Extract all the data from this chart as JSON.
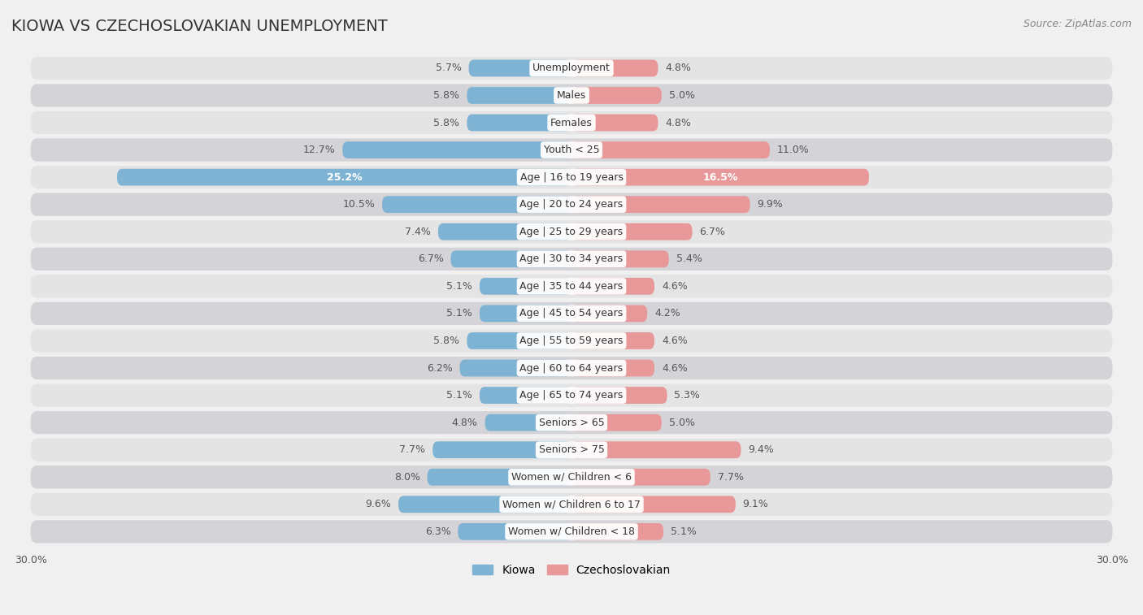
{
  "title": "KIOWA VS CZECHOSLOVAKIAN UNEMPLOYMENT",
  "source": "Source: ZipAtlas.com",
  "categories": [
    "Unemployment",
    "Males",
    "Females",
    "Youth < 25",
    "Age | 16 to 19 years",
    "Age | 20 to 24 years",
    "Age | 25 to 29 years",
    "Age | 30 to 34 years",
    "Age | 35 to 44 years",
    "Age | 45 to 54 years",
    "Age | 55 to 59 years",
    "Age | 60 to 64 years",
    "Age | 65 to 74 years",
    "Seniors > 65",
    "Seniors > 75",
    "Women w/ Children < 6",
    "Women w/ Children 6 to 17",
    "Women w/ Children < 18"
  ],
  "kiowa": [
    5.7,
    5.8,
    5.8,
    12.7,
    25.2,
    10.5,
    7.4,
    6.7,
    5.1,
    5.1,
    5.8,
    6.2,
    5.1,
    4.8,
    7.7,
    8.0,
    9.6,
    6.3
  ],
  "czechoslovakian": [
    4.8,
    5.0,
    4.8,
    11.0,
    16.5,
    9.9,
    6.7,
    5.4,
    4.6,
    4.2,
    4.6,
    4.6,
    5.3,
    5.0,
    9.4,
    7.7,
    9.1,
    5.1
  ],
  "kiowa_color": "#7fb3d3",
  "czechoslovakian_color": "#e89898",
  "max_val": 30.0,
  "bg_color": "#f0f0f0",
  "row_bg_light": "#e8e8e8",
  "row_bg_dark": "#d8d8d8",
  "label_fontsize": 9.0,
  "title_fontsize": 14,
  "source_fontsize": 9.0,
  "legend_fontsize": 10
}
